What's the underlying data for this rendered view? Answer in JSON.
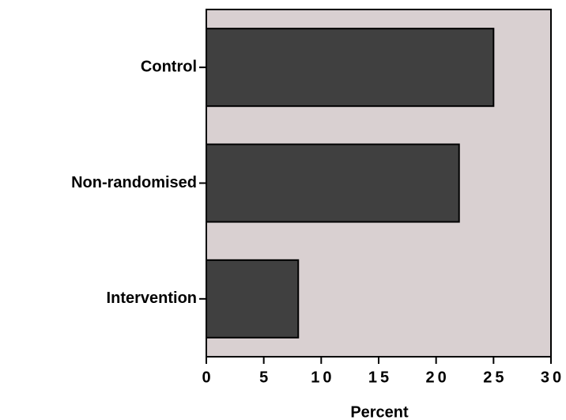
{
  "chart_data": {
    "type": "barh",
    "x_label": "Percent",
    "categories": [
      "Control",
      "Non-randomised",
      "Intervention"
    ],
    "values": [
      25,
      22,
      8
    ],
    "color": "#404040",
    "plot_background": "#d9d0d1",
    "xlim": [
      0,
      30
    ],
    "xticks": [
      0,
      5,
      10,
      15,
      20,
      25,
      30
    ]
  }
}
